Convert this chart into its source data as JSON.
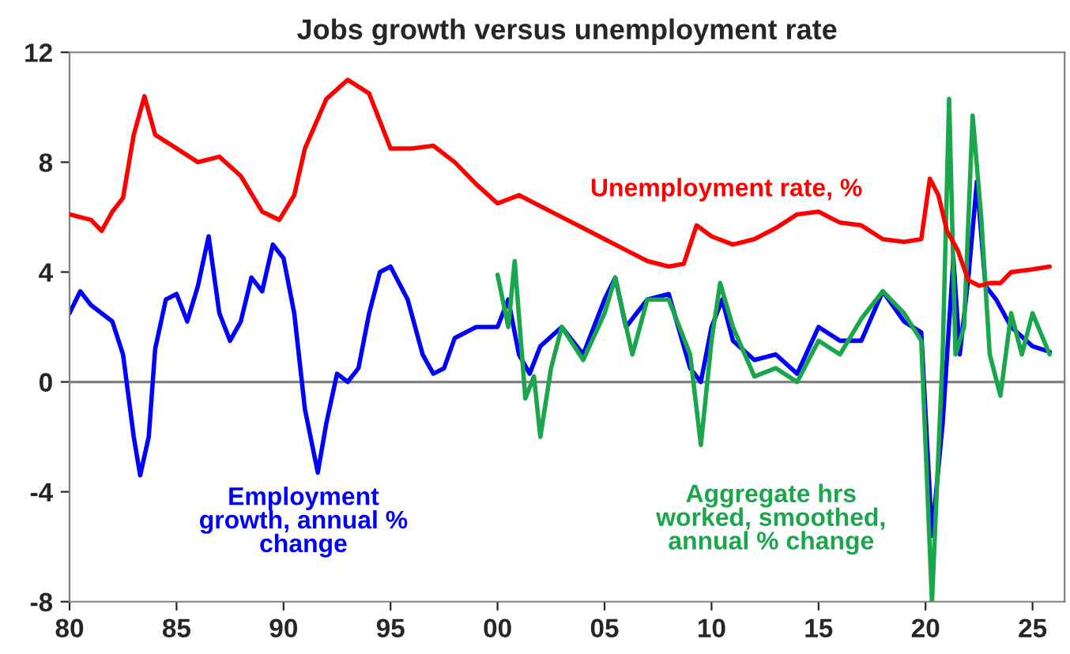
{
  "chart_data": {
    "type": "line",
    "title": "Jobs growth versus unemployment rate",
    "xlim": [
      1980,
      2026.5
    ],
    "ylim": [
      -8,
      12
    ],
    "yticks": [
      -8,
      -4,
      0,
      4,
      8,
      12
    ],
    "xticks": [
      {
        "value": 1980,
        "label": "80"
      },
      {
        "value": 1985,
        "label": "85"
      },
      {
        "value": 1990,
        "label": "90"
      },
      {
        "value": 1995,
        "label": "95"
      },
      {
        "value": 2000,
        "label": "00"
      },
      {
        "value": 2005,
        "label": "05"
      },
      {
        "value": 2010,
        "label": "10"
      },
      {
        "value": 2015,
        "label": "15"
      },
      {
        "value": 2020,
        "label": "20"
      },
      {
        "value": 2025,
        "label": "25"
      }
    ],
    "grid": false,
    "legend": false,
    "ref_lines": [
      {
        "axis": "y",
        "value": 0,
        "color": "#808080"
      }
    ],
    "series": [
      {
        "name": "Unemployment rate, %",
        "color": "#ff0000",
        "x": [
          1980,
          1981,
          1981.5,
          1982,
          1982.5,
          1983,
          1983.5,
          1984,
          1985,
          1986,
          1987,
          1988,
          1989,
          1989.8,
          1990.5,
          1991,
          1992,
          1993,
          1994,
          1995,
          1996,
          1997,
          1998,
          1999,
          2000,
          2001,
          2002,
          2003,
          2004,
          2005,
          2006,
          2007,
          2008,
          2008.7,
          2009.3,
          2010,
          2011,
          2012,
          2013,
          2014,
          2015,
          2016,
          2017,
          2018,
          2019,
          2019.8,
          2020.2,
          2020.6,
          2021,
          2021.5,
          2022,
          2022.5,
          2023,
          2023.5,
          2024,
          2025,
          2025.8
        ],
        "values": [
          6.1,
          5.9,
          5.5,
          6.2,
          6.7,
          9.0,
          10.4,
          9.0,
          8.5,
          8.0,
          8.2,
          7.5,
          6.2,
          5.9,
          6.8,
          8.5,
          10.3,
          11.0,
          10.5,
          8.5,
          8.5,
          8.6,
          8.0,
          7.2,
          6.5,
          6.8,
          6.4,
          6.0,
          5.6,
          5.2,
          4.8,
          4.4,
          4.2,
          4.3,
          5.7,
          5.3,
          5.0,
          5.2,
          5.6,
          6.1,
          6.2,
          5.8,
          5.7,
          5.2,
          5.1,
          5.2,
          7.4,
          6.8,
          5.5,
          4.8,
          3.7,
          3.5,
          3.6,
          3.6,
          4.0,
          4.1,
          4.2
        ]
      },
      {
        "name": "Employment growth, annual % change",
        "color": "#0000ff",
        "x": [
          1980,
          1980.5,
          1981,
          1982,
          1982.5,
          1983,
          1983.3,
          1983.7,
          1984,
          1984.5,
          1985,
          1985.5,
          1986,
          1986.5,
          1987,
          1987.5,
          1988,
          1988.5,
          1989,
          1989.5,
          1990,
          1990.5,
          1991,
          1991.6,
          1992,
          1992.5,
          1993,
          1993.5,
          1994,
          1994.5,
          1995,
          1995.8,
          1996.5,
          1997,
          1997.5,
          1998,
          1999,
          2000,
          2000.5,
          2001,
          2001.5,
          2002,
          2003,
          2004,
          2005,
          2005.5,
          2006,
          2007,
          2008,
          2009,
          2009.5,
          2010,
          2010.5,
          2011,
          2012,
          2013,
          2014,
          2015,
          2016,
          2017,
          2018,
          2019,
          2019.8,
          2020.3,
          2020.8,
          2021.3,
          2021.6,
          2022,
          2022.4,
          2022.8,
          2023.3,
          2024,
          2025,
          2025.8
        ],
        "values": [
          2.5,
          3.3,
          2.8,
          2.2,
          1.0,
          -2.0,
          -3.4,
          -2.0,
          1.2,
          3.0,
          3.2,
          2.2,
          3.5,
          5.3,
          2.5,
          1.5,
          2.2,
          3.8,
          3.3,
          5.0,
          4.5,
          2.5,
          -1.0,
          -3.3,
          -1.5,
          0.3,
          0.0,
          0.5,
          2.5,
          4.0,
          4.2,
          3.0,
          1.0,
          0.3,
          0.5,
          1.6,
          2.0,
          2.0,
          3.0,
          1.0,
          0.3,
          1.3,
          2.0,
          1.0,
          3.0,
          3.8,
          2.0,
          3.0,
          3.2,
          0.5,
          0.0,
          2.0,
          3.0,
          1.5,
          0.8,
          1.0,
          0.3,
          2.0,
          1.5,
          1.5,
          3.3,
          2.2,
          1.8,
          -5.6,
          -1.5,
          4.5,
          1.0,
          3.8,
          7.3,
          3.5,
          3.0,
          2.0,
          1.3,
          1.1
        ]
      },
      {
        "name": "Aggregate hrs worked, smoothed, annual % change",
        "color": "#1aa64a",
        "x": [
          2000,
          2000.5,
          2000.8,
          2001.3,
          2001.7,
          2002,
          2002.5,
          2003,
          2004,
          2005,
          2005.5,
          2006.3,
          2007,
          2008,
          2009,
          2009.5,
          2010,
          2010.4,
          2011,
          2012,
          2013,
          2014,
          2015,
          2016,
          2017,
          2018,
          2019,
          2019.8,
          2020.3,
          2020.8,
          2021.1,
          2021.4,
          2021.8,
          2022.2,
          2022.6,
          2023,
          2023.5,
          2024,
          2024.5,
          2025,
          2025.8
        ],
        "values": [
          3.9,
          2.0,
          4.4,
          -0.6,
          0.2,
          -2.0,
          0.5,
          2.0,
          0.8,
          2.5,
          3.8,
          1.0,
          3.0,
          3.0,
          1.0,
          -2.3,
          1.5,
          3.6,
          2.0,
          0.2,
          0.5,
          0.0,
          1.5,
          1.0,
          2.3,
          3.3,
          2.5,
          1.5,
          -8.0,
          1.0,
          10.3,
          1.0,
          2.0,
          9.7,
          6.0,
          1.0,
          -0.5,
          2.5,
          1.0,
          2.5,
          1.0
        ]
      }
    ]
  }
}
